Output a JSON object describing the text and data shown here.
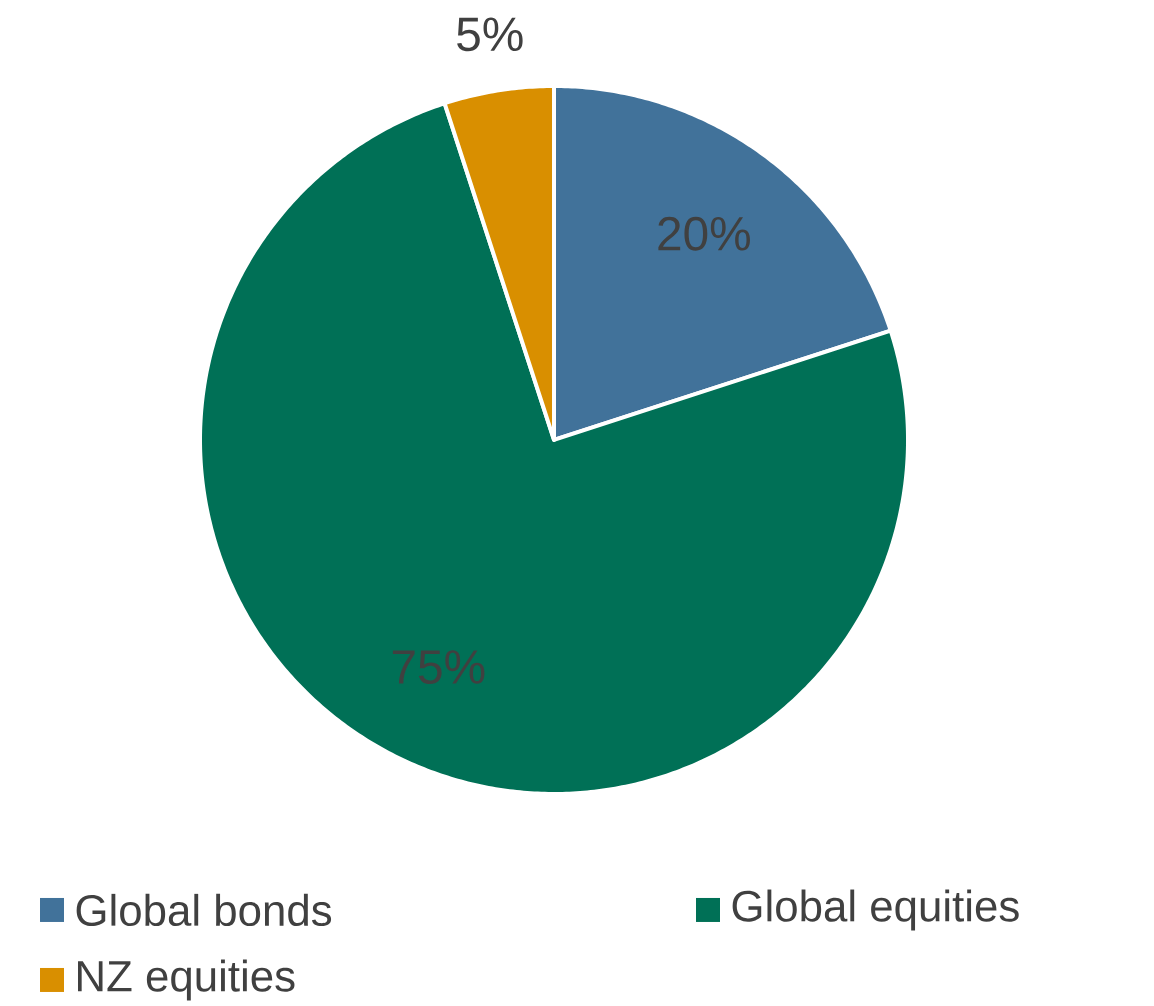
{
  "chart_data": {
    "type": "pie",
    "categories": [
      "Global bonds",
      "Global equities",
      "NZ equities"
    ],
    "values": [
      20,
      75,
      5
    ],
    "colors": [
      "#41729a",
      "#007056",
      "#d98f00"
    ],
    "value_labels": [
      "20%",
      "75%",
      "5%"
    ],
    "legend": "bottom"
  }
}
